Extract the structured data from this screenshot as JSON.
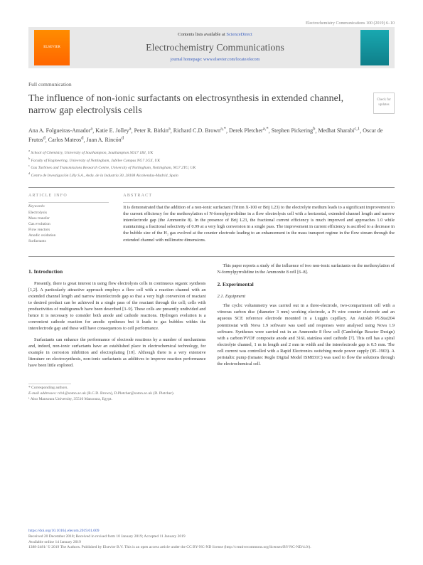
{
  "header": {
    "citation": "Electrochemistry Communications 100 (2019) 6–10",
    "contentsAt": "Contents lists available at ",
    "scienceDirect": "ScienceDirect",
    "journal": "Electrochemistry Communications",
    "homepagePrefix": "journal homepage: ",
    "homepage": "www.elsevier.com/locate/elecom"
  },
  "article": {
    "type": "Full communication",
    "title": "The influence of non-ionic surfactants on electrosynthesis in extended channel, narrow gap electrolysis cells",
    "checkBadge": "Check for updates",
    "authors": [
      {
        "name": "Ana A. Folgueiras-Amador",
        "sup": "a"
      },
      {
        "name": "Katie E. Jolley",
        "sup": "a"
      },
      {
        "name": "Peter R. Birkin",
        "sup": "a"
      },
      {
        "name": "Richard C.D. Brown",
        "sup": "a,*"
      },
      {
        "name": "Derek Pletcher",
        "sup": "a,*"
      },
      {
        "name": "Stephen Pickering",
        "sup": "b"
      },
      {
        "name": "Medhat Sharabi",
        "sup": "c,1"
      },
      {
        "name": "Oscar de Frutos",
        "sup": "d"
      },
      {
        "name": "Carlos Mateos",
        "sup": "d"
      },
      {
        "name": "Juan A. Rincón",
        "sup": "d"
      }
    ],
    "affiliations": [
      {
        "sup": "a",
        "text": "School of Chemistry, University of Southampton, Southampton SO17 1BJ, UK"
      },
      {
        "sup": "b",
        "text": "Faculty of Engineering, University of Nottingham, Jubilee Campus NG7 2GX, UK"
      },
      {
        "sup": "c",
        "text": "Gas Turbines and Transmissions Research Centre, University of Nottingham, Nottingham, NG7 2TU, UK"
      },
      {
        "sup": "d",
        "text": "Centro de Investigación Lilly S.A., Avda. de la Industria 30, 28108 Alcobendas-Madrid, Spain"
      }
    ]
  },
  "info": {
    "infoLabel": "ARTICLE INFO",
    "abstractLabel": "ABSTRACT",
    "keywordsHead": "Keywords:",
    "keywords": [
      "Electrolysis",
      "Mass transfer",
      "Gas evolution",
      "Flow reactors",
      "Anodic oxidation",
      "Surfactants"
    ],
    "abstract": "It is demonstrated that the addition of a non-ionic surfactant (Triton X-100 or Brij L23) to the electrolyte medium leads to a significant improvement to the current efficiency for the methoxylation of N-formylpyrrolidine in a flow electrolysis cell with a horizontal, extended channel length and narrow interelectrode gap (the Ammonite 8). In the presence of Brij L23, the fractional current efficiency is much improved and approaches 1.0 while maintaining a fractional selectivity of 0.99 at a very high conversion in a single pass. The improvement in current efficiency is ascribed to a decrease in the bubble size of the H₂ gas evolved at the counter electrode leading to an enhancement in the mass transport regime in the flow stream through the extended channel with millimetre dimensions."
  },
  "sections": {
    "intro": {
      "heading": "1. Introduction",
      "p1": "Presently, there is great interest in using flow electrolysis cells in continuous organic synthesis [1,2]. A particularly attractive approach employs a flow cell with a reaction channel with an extended channel length and narrow interelectrode gap so that a very high conversion of reactant to desired product can be achieved in a single pass of the reactant through the cell; cells with productivities of multigrams/h have been described [3–9]. These cells are presently undivided and hence it is necessary to consider both anode and cathode reactions. Hydrogen evolution is a convenient cathode reaction for anodic syntheses but it leads to gas bubbles within the interelectrode gap and these will have consequences to cell performance.",
      "p2": "Surfactants can enhance the performance of electrode reactions by a number of mechanisms and, indeed, non-ionic surfactants have an established place in electrochemical technology, for example in corrosion inhibition and electroplating [10]. Although there is a very extensive literature on electrosynthesis, non-ionic surfactants as additives to improve reaction performance have been little explored.",
      "p3a": "This paper reports a study of the influence of two non-ionic",
      "p3b": "surfactants on the methoxylation of N-formylpyrrolidine in the Ammonite 8 cell [6–8]."
    },
    "exp": {
      "heading": "2. Experimental",
      "sub1": "2.1. Equipment",
      "p1": "The cyclic voltammetry was carried out in a three-electrode, two-compartment cell with a vitreous carbon disc (diameter 3 mm) working electrode, a Pt wire counter electrode and an aqueous SCE reference electrode mounted in a Luggin capillary. An Autolab PGStat204 potentiostat with Nova 1.9 software was used and responses were analysed using Nova 1.9 software. Syntheses were carried out in an Ammonite 8 flow cell (Cambridge Reactor Design) with a carbon/PVDF composite anode and 316L stainless steel cathode [7]. This cell has a spiral electrolyte channel, 1 m in length and 2 mm in width and the interelectrode gap is 0.5 mm. The cell current was controlled with a Rapid Electronics switching mode power supply (85–1903). A peristaltic pump (Ismatec Reglo Digital Model ISM831C) was used to flow the solutions through the electrochemical cell."
    }
  },
  "footer": {
    "corresponding": "* Corresponding authors.",
    "emailPrefix": "E-mail addresses: ",
    "emails": "rcb1@soton.ac.uk (R.C.D. Brown), D.Pletcher@soton.ac.uk (D. Pletcher).",
    "also": "¹ Also Mansoura University, 35516 Mansoura, Egypt.",
    "doi": "https://doi.org/10.1016/j.elecom.2019.01.009",
    "received": "Received 20 December 2018; Received in revised form 10 January 2019; Accepted 11 January 2019",
    "available": "Available online 14 January 2019",
    "copyright": "1388-2481/ © 2019 The Authors. Published by Elsevier B.V. This is an open access article under the CC BY-NC-ND license (http://creativecommons.org/licenses/BY-NC-ND/4.0/).",
    "elsevierLogo": "ELSEVIER"
  },
  "colors": {
    "link": "#3a5fbf",
    "headerBg": "#e8e8e8",
    "logoGrad1": "#ff8c00",
    "logoGrad2": "#ff6600",
    "coverGrad1": "#19a8b0",
    "coverGrad2": "#0f7f8a"
  }
}
